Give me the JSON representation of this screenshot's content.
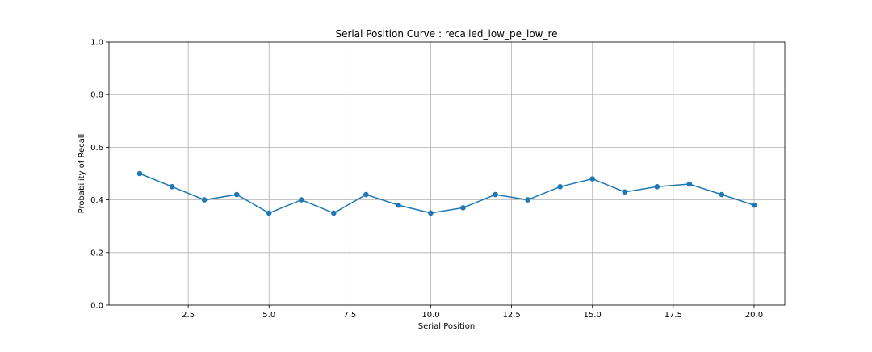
{
  "chart_data": {
    "type": "line",
    "title": "Serial Position Curve : recalled_low_pe_low_re",
    "xlabel": "Serial Position",
    "ylabel": "Probability of Recall",
    "xlim": [
      0.05,
      20.95
    ],
    "ylim": [
      0.0,
      1.0
    ],
    "x_ticks": [
      "2.5",
      "5.0",
      "7.5",
      "10.0",
      "12.5",
      "15.0",
      "17.5",
      "20.0"
    ],
    "x_tick_values": [
      2.5,
      5.0,
      7.5,
      10.0,
      12.5,
      15.0,
      17.5,
      20.0
    ],
    "y_ticks": [
      "0.0",
      "0.2",
      "0.4",
      "0.6",
      "0.8",
      "1.0"
    ],
    "y_tick_values": [
      0.0,
      0.2,
      0.4,
      0.6,
      0.8,
      1.0
    ],
    "grid": true,
    "legend": "none",
    "line_color": "#1f77b4",
    "x": [
      1,
      2,
      3,
      4,
      5,
      6,
      7,
      8,
      9,
      10,
      11,
      12,
      13,
      14,
      15,
      16,
      17,
      18,
      19,
      20
    ],
    "series": [
      {
        "values": [
          0.5,
          0.45,
          0.4,
          0.42,
          0.35,
          0.4,
          0.35,
          0.42,
          0.38,
          0.35,
          0.37,
          0.42,
          0.4,
          0.45,
          0.48,
          0.43,
          0.45,
          0.46,
          0.42,
          0.38
        ]
      }
    ]
  }
}
